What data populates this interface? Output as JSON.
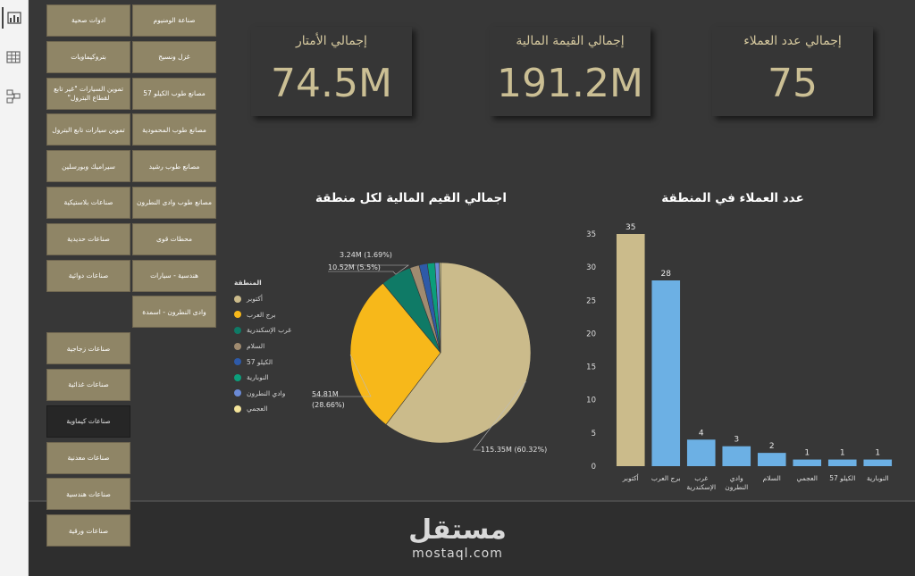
{
  "rail": {
    "items": [
      {
        "name": "report-view",
        "icon": "bar-chart-icon",
        "active": true
      },
      {
        "name": "data-view",
        "icon": "table-icon",
        "active": false
      },
      {
        "name": "model-view",
        "icon": "model-icon",
        "active": false
      }
    ]
  },
  "slicer": {
    "items": [
      {
        "label": "صناعة الومنيوم",
        "selected": false
      },
      {
        "label": "ادوات صحية",
        "selected": false
      },
      {
        "label": "غزل ونسيج",
        "selected": false
      },
      {
        "label": "بتروكيماويات",
        "selected": false
      },
      {
        "label": "مصانع طوب الكيلو 57",
        "selected": false
      },
      {
        "label": "تموين السيارات \"غير تابع لقطاع البترول\"",
        "selected": false
      },
      {
        "label": "مصانع طوب المحمودية",
        "selected": false
      },
      {
        "label": "تموين سيارات تابع البترول",
        "selected": false
      },
      {
        "label": "مصانع طوب رشيد",
        "selected": false
      },
      {
        "label": "سيراميك وبورسلين",
        "selected": false
      },
      {
        "label": "مصانع طوب وادى النطرون",
        "selected": false
      },
      {
        "label": "صناعات بلاستيكية",
        "selected": false
      },
      {
        "label": "محطات قوى",
        "selected": false
      },
      {
        "label": "صناعات حديدية",
        "selected": false
      },
      {
        "label": "هندسية - سيارات",
        "selected": false
      },
      {
        "label": "صناعات دوائية",
        "selected": false
      },
      {
        "label": "وادى النطرون - اسمدة",
        "selected": false
      },
      {
        "label": "صناعات زجاجية",
        "selected": false
      },
      {
        "label": "صناعات غذائية",
        "selected": false
      },
      {
        "label": "صناعات كيماوية",
        "selected": true
      },
      {
        "label": "صناعات معدنية",
        "selected": false
      },
      {
        "label": "صناعات هندسية",
        "selected": false
      },
      {
        "label": "صناعات ورقية",
        "selected": false
      }
    ]
  },
  "kpis": [
    {
      "title": "إجمالي الأمتار",
      "value": "74.5M"
    },
    {
      "title": "إجمالي القيمة المالية",
      "value": "191.2M"
    },
    {
      "title": "إجمالي عدد العملاء",
      "value": "75"
    }
  ],
  "pie": {
    "title": "اجمالي القيم المالية لكل منطقة",
    "legend_title": "المنطقة",
    "labels": [
      {
        "text": "3.24M (1.69%)",
        "slice": 2
      },
      {
        "text": "10.52M (5.5%)",
        "slice": 2
      },
      {
        "text": "54.81M",
        "slice": 1
      },
      {
        "text": "(28.66%)",
        "slice": 1
      },
      {
        "text": "115.35M (60.32%)",
        "slice": 0
      }
    ]
  },
  "chart_data": [
    {
      "type": "pie",
      "title": "اجمالي القيم المالية لكل منطقة",
      "legend": "left",
      "categories": [
        "أكتوبر",
        "برج العرب",
        "غرب الإسكندرية",
        "السلام",
        "الكيلو 57",
        "النوبارية",
        "وادي النطرون",
        "العجمي"
      ],
      "values": [
        115.35,
        54.81,
        10.52,
        3.24,
        2.8,
        2.6,
        1.5,
        0.4
      ],
      "colors": [
        "#cbbb8b",
        "#f7b81a",
        "#0f7a66",
        "#a08b70",
        "#2e5aa8",
        "#0c9e7b",
        "#6b8ad6",
        "#f4e49a"
      ]
    },
    {
      "type": "bar",
      "title": "عدد العملاء في المنطقة",
      "categories": [
        "أكتوبر",
        "برج العرب",
        "غرب الإسكندرية",
        "وادي النطرون",
        "السلام",
        "العجمي",
        "الكيلو 57",
        "النوبارية"
      ],
      "category_labels": [
        [
          "أكتوبر"
        ],
        [
          "برج العرب"
        ],
        [
          "غرب",
          "الإسكندرية"
        ],
        [
          "وادي",
          "النطرون"
        ],
        [
          "السلام"
        ],
        [
          "العجمي"
        ],
        [
          "الكيلو 57"
        ],
        [
          "النوبارية"
        ]
      ],
      "values": [
        35,
        28,
        4,
        3,
        2,
        1,
        1,
        1
      ],
      "bar_colors": [
        "#cbbb8b",
        "#6cb0e4",
        "#6cb0e4",
        "#6cb0e4",
        "#6cb0e4",
        "#6cb0e4",
        "#6cb0e4",
        "#6cb0e4"
      ],
      "ylim": [
        0,
        35
      ],
      "yticks": [
        0,
        5,
        10,
        15,
        20,
        25,
        30,
        35
      ],
      "grid": false
    }
  ],
  "watermark": {
    "arabic": "مستقل",
    "latin": "mostaql.com"
  },
  "colors": {
    "canvas": "#373737",
    "tile": "#8f8566",
    "tile_selected": "#262626",
    "kpi_text": "#cbbf94"
  }
}
